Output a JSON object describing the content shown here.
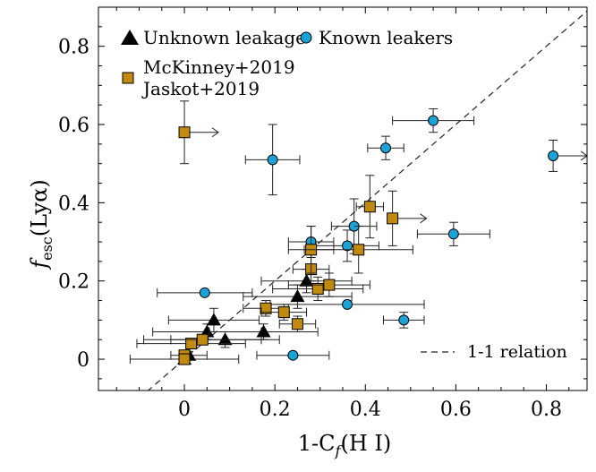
{
  "chart_data": {
    "type": "scatter",
    "title": "",
    "xlabel": {
      "text": "1-C",
      "sub": "f",
      "suffix": "(H I)"
    },
    "ylabel": {
      "text": "f",
      "sub": "esc",
      "suffix": "(Lyα)"
    },
    "xlim": [
      -0.19,
      0.89
    ],
    "ylim": [
      -0.08,
      0.9
    ],
    "xticks": [
      0,
      0.2,
      0.4,
      0.6,
      0.8
    ],
    "yticks": [
      0,
      0.2,
      0.4,
      0.6,
      0.8
    ],
    "xtick_labels": [
      "0",
      "0.2",
      "0.4",
      "0.6",
      "0.8"
    ],
    "ytick_labels": [
      "0",
      "0.2",
      "0.4",
      "0.6",
      "0.8"
    ],
    "grid": false,
    "reference_line": {
      "name": "1-1 relation",
      "style": "dashed",
      "slope": 1,
      "intercept": 0
    },
    "colors": {
      "unknown": "#000000",
      "known": "#1aa3d4",
      "lit": "#c08a10",
      "line": "#222222"
    },
    "legend": {
      "unknown": "Unknown leakage",
      "known": "Known leakers",
      "lit_line1": "McKinney+2019",
      "lit_line2": "Jaskot+2019",
      "relation": "1-1 relation"
    },
    "series": [
      {
        "name": "Unknown leakage",
        "marker": "triangle",
        "points": [
          {
            "x": 0.0,
            "y": 0.0,
            "xerr": 0.12,
            "yerr": 0.01
          },
          {
            "x": 0.01,
            "y": 0.01,
            "xerr": 0.04,
            "yerr": 0.01
          },
          {
            "x": 0.05,
            "y": 0.07,
            "xerr": 0.12,
            "yerr": 0.02
          },
          {
            "x": 0.065,
            "y": 0.1,
            "xerr": 0.1,
            "yerr": 0.03
          },
          {
            "x": 0.09,
            "y": 0.05,
            "xerr": 0.12,
            "yerr": 0.02
          },
          {
            "x": 0.175,
            "y": 0.07,
            "xerr": 0.12,
            "yerr": 0.02
          },
          {
            "x": 0.25,
            "y": 0.16,
            "xerr": 0.12,
            "yerr": 0.03
          },
          {
            "x": 0.27,
            "y": 0.2,
            "xerr": 0.1,
            "yerr": 0.03
          }
        ]
      },
      {
        "name": "Known leakers",
        "marker": "circle",
        "points": [
          {
            "x": 0.045,
            "y": 0.17,
            "xerr": 0.105,
            "yerr": 0.0
          },
          {
            "x": 0.195,
            "y": 0.51,
            "xerr": 0.06,
            "yerr": 0.09
          },
          {
            "x": 0.24,
            "y": 0.01,
            "xerr": 0.08,
            "yerr": 0.0
          },
          {
            "x": 0.28,
            "y": 0.3,
            "xerr": 0.05,
            "yerr": 0.04
          },
          {
            "x": 0.36,
            "y": 0.29,
            "xerr": 0.07,
            "yerr": 0.04
          },
          {
            "x": 0.36,
            "y": 0.14,
            "xerr": 0.17,
            "yerr": 0.0
          },
          {
            "x": 0.375,
            "y": 0.34,
            "xerr": 0.05,
            "yerr": 0.07
          },
          {
            "x": 0.445,
            "y": 0.54,
            "xerr": 0.04,
            "yerr": 0.03
          },
          {
            "x": 0.485,
            "y": 0.1,
            "xerr": 0.045,
            "yerr": 0.02
          },
          {
            "x": 0.55,
            "y": 0.61,
            "xerr": 0.09,
            "yerr": 0.03
          },
          {
            "x": 0.595,
            "y": 0.32,
            "xerr": 0.08,
            "yerr": 0.03
          },
          {
            "x": 0.815,
            "y": 0.52,
            "xerr": 0.0,
            "yerr": 0.04,
            "lower_limit_x": true
          }
        ]
      },
      {
        "name": "McKinney+2019 / Jaskot+2019",
        "marker": "square",
        "points": [
          {
            "x": 0.0,
            "y": 0.58,
            "xerr": 0.0,
            "yerr": 0.08,
            "lower_limit_x": true
          },
          {
            "x": 0.0,
            "y": 0.01,
            "xerr": 0.0,
            "yerr": 0.01
          },
          {
            "x": 0.0,
            "y": 0.0,
            "xerr": 0.0,
            "yerr": 0.01
          },
          {
            "x": 0.015,
            "y": 0.04,
            "xerr": 0.12,
            "yerr": 0.01
          },
          {
            "x": 0.04,
            "y": 0.05,
            "xerr": 0.13,
            "yerr": 0.01
          },
          {
            "x": 0.18,
            "y": 0.13,
            "xerr": 0.05,
            "yerr": 0.02
          },
          {
            "x": 0.22,
            "y": 0.12,
            "xerr": 0.05,
            "yerr": 0.02
          },
          {
            "x": 0.25,
            "y": 0.09,
            "xerr": 0.04,
            "yerr": 0.02
          },
          {
            "x": 0.28,
            "y": 0.23,
            "xerr": 0.04,
            "yerr": 0.03
          },
          {
            "x": 0.28,
            "y": 0.28,
            "xerr": 0.05,
            "yerr": 0.06
          },
          {
            "x": 0.295,
            "y": 0.18,
            "xerr": 0.1,
            "yerr": 0.03
          },
          {
            "x": 0.32,
            "y": 0.19,
            "xerr": 0.09,
            "yerr": 0.03
          },
          {
            "x": 0.385,
            "y": 0.28,
            "xerr": 0.12,
            "yerr": 0.06
          },
          {
            "x": 0.41,
            "y": 0.39,
            "xerr": 0.03,
            "yerr": 0.08
          },
          {
            "x": 0.46,
            "y": 0.36,
            "xerr": 0.0,
            "yerr": 0.07,
            "lower_limit_x": true
          }
        ]
      }
    ]
  }
}
